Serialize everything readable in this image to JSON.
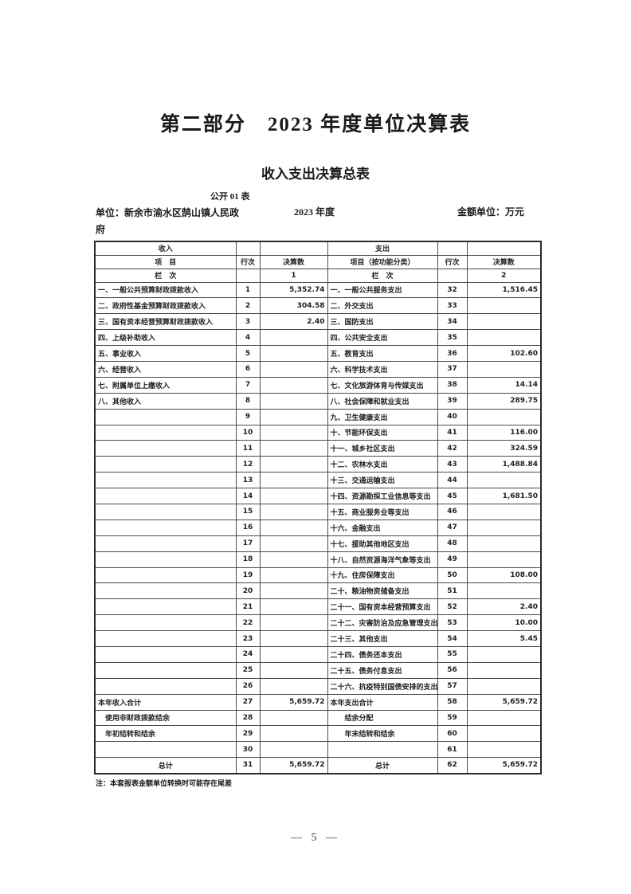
{
  "page": {
    "part_title": "第二部分　2023 年度单位决算表",
    "table_title": "收入支出决算总表",
    "table_code": "公开 01 表",
    "unit_label": "单位：新余市渝水区鹄山镇人民政府",
    "year_label": "2023 年度",
    "amount_unit_label": "金额单位：万元",
    "footnote": "注：本套报表金额单位转换时可能存在尾差",
    "page_number": "— 5 —"
  },
  "table": {
    "header": {
      "income_group": "收入",
      "expense_group": "支出",
      "income_item": "项　目",
      "row_no": "行次",
      "amount": "决算数",
      "expense_item": "项目（按功能分类）",
      "column_label": "栏　次",
      "income_col_no": "1",
      "expense_col_no": "2"
    },
    "rows": [
      {
        "income_item": "一、一般公共预算财政拨款收入",
        "income_row": "1",
        "income_value": "5,352.74",
        "expense_item": "一、一般公共服务支出",
        "expense_row": "32",
        "expense_value": "1,516.45"
      },
      {
        "income_item": "二、政府性基金预算财政拨款收入",
        "income_row": "2",
        "income_value": "304.58",
        "expense_item": "二、外交支出",
        "expense_row": "33",
        "expense_value": ""
      },
      {
        "income_item": "三、国有资本经营预算财政拨款收入",
        "income_row": "3",
        "income_value": "2.40",
        "expense_item": "三、国防支出",
        "expense_row": "34",
        "expense_value": ""
      },
      {
        "income_item": "四、上级补助收入",
        "income_row": "4",
        "income_value": "",
        "expense_item": "四、公共安全支出",
        "expense_row": "35",
        "expense_value": ""
      },
      {
        "income_item": "五、事业收入",
        "income_row": "5",
        "income_value": "",
        "expense_item": "五、教育支出",
        "expense_row": "36",
        "expense_value": "102.60"
      },
      {
        "income_item": "六、经营收入",
        "income_row": "6",
        "income_value": "",
        "expense_item": "六、科学技术支出",
        "expense_row": "37",
        "expense_value": ""
      },
      {
        "income_item": "七、附属单位上缴收入",
        "income_row": "7",
        "income_value": "",
        "expense_item": "七、文化旅游体育与传媒支出",
        "expense_row": "38",
        "expense_value": "14.14"
      },
      {
        "income_item": "八、其他收入",
        "income_row": "8",
        "income_value": "",
        "expense_item": "八、社会保障和就业支出",
        "expense_row": "39",
        "expense_value": "289.75"
      },
      {
        "income_item": "",
        "income_row": "9",
        "income_value": "",
        "expense_item": "九、卫生健康支出",
        "expense_row": "40",
        "expense_value": ""
      },
      {
        "income_item": "",
        "income_row": "10",
        "income_value": "",
        "expense_item": "十、节能环保支出",
        "expense_row": "41",
        "expense_value": "116.00"
      },
      {
        "income_item": "",
        "income_row": "11",
        "income_value": "",
        "expense_item": "十一、城乡社区支出",
        "expense_row": "42",
        "expense_value": "324.59"
      },
      {
        "income_item": "",
        "income_row": "12",
        "income_value": "",
        "expense_item": "十二、农林水支出",
        "expense_row": "43",
        "expense_value": "1,488.84"
      },
      {
        "income_item": "",
        "income_row": "13",
        "income_value": "",
        "expense_item": "十三、交通运输支出",
        "expense_row": "44",
        "expense_value": ""
      },
      {
        "income_item": "",
        "income_row": "14",
        "income_value": "",
        "expense_item": "十四、资源勘探工业信息等支出",
        "expense_row": "45",
        "expense_value": "1,681.50"
      },
      {
        "income_item": "",
        "income_row": "15",
        "income_value": "",
        "expense_item": "十五、商业服务业等支出",
        "expense_row": "46",
        "expense_value": ""
      },
      {
        "income_item": "",
        "income_row": "16",
        "income_value": "",
        "expense_item": "十六、金融支出",
        "expense_row": "47",
        "expense_value": ""
      },
      {
        "income_item": "",
        "income_row": "17",
        "income_value": "",
        "expense_item": "十七、援助其他地区支出",
        "expense_row": "48",
        "expense_value": ""
      },
      {
        "income_item": "",
        "income_row": "18",
        "income_value": "",
        "expense_item": "十八、自然资源海洋气象等支出",
        "expense_row": "49",
        "expense_value": ""
      },
      {
        "income_item": "",
        "income_row": "19",
        "income_value": "",
        "expense_item": "十九、住房保障支出",
        "expense_row": "50",
        "expense_value": "108.00"
      },
      {
        "income_item": "",
        "income_row": "20",
        "income_value": "",
        "expense_item": "二十、粮油物资储备支出",
        "expense_row": "51",
        "expense_value": ""
      },
      {
        "income_item": "",
        "income_row": "21",
        "income_value": "",
        "expense_item": "二十一、国有资本经营预算支出",
        "expense_row": "52",
        "expense_value": "2.40"
      },
      {
        "income_item": "",
        "income_row": "22",
        "income_value": "",
        "expense_item": "二十二、灾害防治及应急管理支出",
        "expense_row": "53",
        "expense_value": "10.00"
      },
      {
        "income_item": "",
        "income_row": "23",
        "income_value": "",
        "expense_item": "二十三、其他支出",
        "expense_row": "54",
        "expense_value": "5.45"
      },
      {
        "income_item": "",
        "income_row": "24",
        "income_value": "",
        "expense_item": "二十四、债务还本支出",
        "expense_row": "55",
        "expense_value": ""
      },
      {
        "income_item": "",
        "income_row": "25",
        "income_value": "",
        "expense_item": "二十五、债务付息支出",
        "expense_row": "56",
        "expense_value": ""
      },
      {
        "income_item": "",
        "income_row": "26",
        "income_value": "",
        "expense_item": "二十六、抗疫特别国债安排的支出",
        "expense_row": "57",
        "expense_value": ""
      },
      {
        "income_item": "本年收入合计",
        "income_row": "27",
        "income_value": "5,659.72",
        "expense_item": "本年支出合计",
        "expense_row": "58",
        "expense_value": "5,659.72"
      },
      {
        "income_item": "　使用非财政拨款结余",
        "income_row": "28",
        "income_value": "",
        "expense_item": "　　结余分配",
        "expense_row": "59",
        "expense_value": ""
      },
      {
        "income_item": "　年初结转和结余",
        "income_row": "29",
        "income_value": "",
        "expense_item": "　　年末结转和结余",
        "expense_row": "60",
        "expense_value": ""
      },
      {
        "income_item": "",
        "income_row": "30",
        "income_value": "",
        "expense_item": "",
        "expense_row": "61",
        "expense_value": ""
      },
      {
        "income_item": "总计",
        "income_row": "31",
        "income_value": "5,659.72",
        "expense_item": "总计",
        "expense_row": "62",
        "expense_value": "5,659.72",
        "total": true
      }
    ]
  }
}
